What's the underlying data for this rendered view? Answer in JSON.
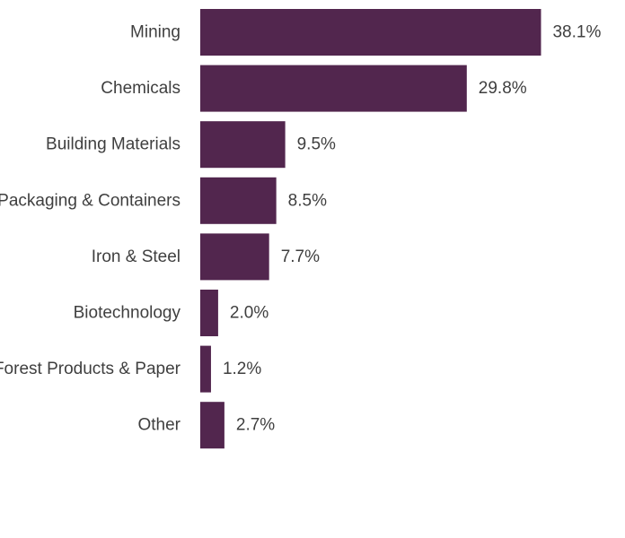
{
  "chart_data": {
    "type": "bar",
    "orientation": "horizontal",
    "categories": [
      "Mining",
      "Chemicals",
      "Building Materials",
      "Packaging & Containers",
      "Iron & Steel",
      "Biotechnology",
      "Forest Products & Paper",
      "Other"
    ],
    "values": [
      38.1,
      29.8,
      9.5,
      8.5,
      7.7,
      2.0,
      1.2,
      2.7
    ],
    "value_labels": [
      "38.1%",
      "29.8%",
      "9.5%",
      "8.5%",
      "7.7%",
      "2.0%",
      "1.2%",
      "2.7%"
    ],
    "bar_color": "#52264e",
    "title": "",
    "xlabel": "",
    "ylabel": "",
    "grid": false,
    "legend": "none"
  }
}
